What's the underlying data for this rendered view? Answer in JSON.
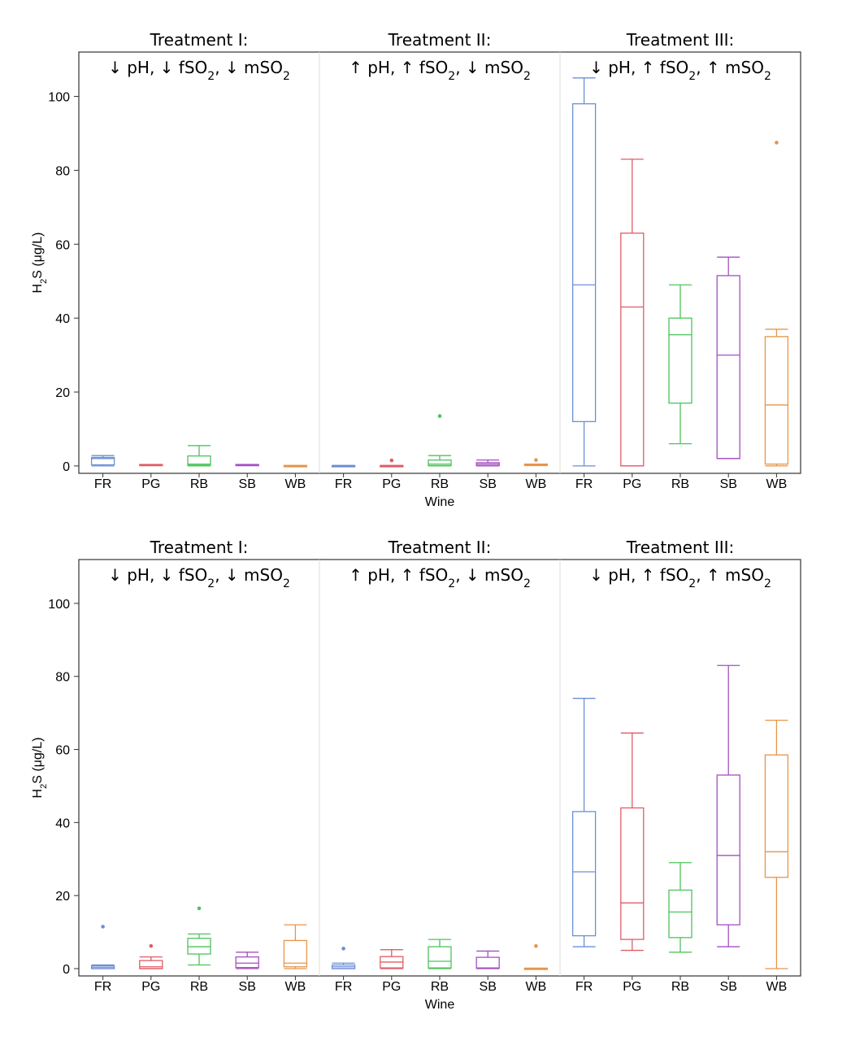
{
  "chart_data": [
    {
      "type": "box",
      "xlabel": "Wine",
      "ylabel": "H₂S (μg/L)",
      "ylim": [
        -2,
        112
      ],
      "yticks": [
        0,
        20,
        40,
        60,
        80,
        100
      ],
      "categories": [
        "FR",
        "PG",
        "RB",
        "SB",
        "WB"
      ],
      "colors": {
        "FR": "#6b8fd4",
        "PG": "#e05c67",
        "RB": "#4cc45a",
        "SB": "#a44fc2",
        "WB": "#e8944a"
      },
      "panels": [
        {
          "title": "Treatment I:",
          "subtitle": "↓ pH, ↓ fSO₂, ↓ mSO₂",
          "boxes": [
            {
              "cat": "FR",
              "lo": 0,
              "q1": 0.3,
              "med": 2.0,
              "q3": 2.3,
              "hi": 2.8,
              "outliers": []
            },
            {
              "cat": "PG",
              "lo": 0.2,
              "q1": 0.2,
              "med": 0.3,
              "q3": 0.4,
              "hi": 0.4,
              "outliers": []
            },
            {
              "cat": "RB",
              "lo": 0,
              "q1": 0.2,
              "med": 0.5,
              "q3": 2.7,
              "hi": 5.5,
              "outliers": []
            },
            {
              "cat": "SB",
              "lo": 0.2,
              "q1": 0.2,
              "med": 0.3,
              "q3": 0.4,
              "hi": 0.4,
              "outliers": []
            },
            {
              "cat": "WB",
              "lo": 0,
              "q1": 0,
              "med": 0.1,
              "q3": 0.1,
              "hi": 0.1,
              "outliers": []
            }
          ]
        },
        {
          "title": "Treatment II:",
          "subtitle": "↑ pH, ↑ fSO₂, ↓ mSO₂",
          "boxes": [
            {
              "cat": "FR",
              "lo": 0,
              "q1": 0,
              "med": 0.1,
              "q3": 0.1,
              "hi": 0.1,
              "outliers": []
            },
            {
              "cat": "PG",
              "lo": 0,
              "q1": 0,
              "med": 0.1,
              "q3": 0.1,
              "hi": 0.1,
              "outliers": [
                1.5
              ]
            },
            {
              "cat": "RB",
              "lo": 0,
              "q1": 0.1,
              "med": 0.5,
              "q3": 1.6,
              "hi": 2.8,
              "outliers": [
                13.5
              ]
            },
            {
              "cat": "SB",
              "lo": 0,
              "q1": 0.1,
              "med": 0.5,
              "q3": 0.9,
              "hi": 1.6,
              "outliers": []
            },
            {
              "cat": "WB",
              "lo": 0.1,
              "q1": 0.2,
              "med": 0.3,
              "q3": 0.5,
              "hi": 0.5,
              "outliers": [
                1.6
              ]
            }
          ]
        },
        {
          "title": "Treatment III:",
          "subtitle": "↓ pH, ↑ fSO₂, ↑ mSO₂",
          "boxes": [
            {
              "cat": "FR",
              "lo": 0,
              "q1": 12,
              "med": 49,
              "q3": 98,
              "hi": 105,
              "outliers": []
            },
            {
              "cat": "PG",
              "lo": 0,
              "q1": 0,
              "med": 43,
              "q3": 63,
              "hi": 83,
              "outliers": []
            },
            {
              "cat": "RB",
              "lo": 6,
              "q1": 17,
              "med": 35.5,
              "q3": 40,
              "hi": 49,
              "outliers": []
            },
            {
              "cat": "SB",
              "lo": 2,
              "q1": 2,
              "med": 30,
              "q3": 51.5,
              "hi": 56.5,
              "outliers": []
            },
            {
              "cat": "WB",
              "lo": 0,
              "q1": 0.5,
              "med": 16.5,
              "q3": 35,
              "hi": 37,
              "outliers": [
                87.5
              ]
            }
          ]
        }
      ]
    },
    {
      "type": "box",
      "xlabel": "Wine",
      "ylabel": "H₂S (μg/L)",
      "ylim": [
        -2,
        112
      ],
      "yticks": [
        0,
        20,
        40,
        60,
        80,
        100
      ],
      "categories": [
        "FR",
        "PG",
        "RB",
        "SB",
        "WB"
      ],
      "colors": {
        "FR": "#6b8fd4",
        "PG": "#e05c67",
        "RB": "#4cc45a",
        "SB": "#a44fc2",
        "WB": "#e8944a"
      },
      "panels": [
        {
          "title": "Treatment I:",
          "subtitle": "↓ pH, ↓ fSO₂, ↓ mSO₂",
          "boxes": [
            {
              "cat": "FR",
              "lo": 0,
              "q1": 0,
              "med": 0.4,
              "q3": 0.8,
              "hi": 1.0,
              "outliers": [
                11.5
              ]
            },
            {
              "cat": "PG",
              "lo": 0,
              "q1": 0,
              "med": 0.5,
              "q3": 2.2,
              "hi": 3.2,
              "outliers": [
                6.2
              ]
            },
            {
              "cat": "RB",
              "lo": 1,
              "q1": 4,
              "med": 6,
              "q3": 8.3,
              "hi": 9.5,
              "outliers": [
                16.5
              ]
            },
            {
              "cat": "SB",
              "lo": 0,
              "q1": 0.3,
              "med": 1.5,
              "q3": 3.2,
              "hi": 4.5,
              "outliers": []
            },
            {
              "cat": "WB",
              "lo": 0,
              "q1": 0.5,
              "med": 1.5,
              "q3": 7.7,
              "hi": 12,
              "outliers": []
            }
          ]
        },
        {
          "title": "Treatment II:",
          "subtitle": "↑ pH, ↑ fSO₂, ↓ mSO₂",
          "boxes": [
            {
              "cat": "FR",
              "lo": 0,
              "q1": 0,
              "med": 0.5,
              "q3": 1.0,
              "hi": 1.5,
              "outliers": [
                5.5
              ]
            },
            {
              "cat": "PG",
              "lo": 0,
              "q1": 0.2,
              "med": 1.8,
              "q3": 3.3,
              "hi": 5.2,
              "outliers": []
            },
            {
              "cat": "RB",
              "lo": 0,
              "q1": 0.2,
              "med": 2,
              "q3": 6,
              "hi": 8,
              "outliers": []
            },
            {
              "cat": "SB",
              "lo": 0,
              "q1": 0.1,
              "med": 0.2,
              "q3": 3.1,
              "hi": 4.8,
              "outliers": []
            },
            {
              "cat": "WB",
              "lo": 0,
              "q1": 0,
              "med": 0.1,
              "q3": 0.1,
              "hi": 0.1,
              "outliers": [
                6.2
              ]
            }
          ]
        },
        {
          "title": "Treatment III:",
          "subtitle": "↓ pH, ↑ fSO₂, ↑ mSO₂",
          "boxes": [
            {
              "cat": "FR",
              "lo": 6,
              "q1": 9,
              "med": 26.5,
              "q3": 43,
              "hi": 74,
              "outliers": []
            },
            {
              "cat": "PG",
              "lo": 5,
              "q1": 8,
              "med": 18,
              "q3": 44,
              "hi": 64.5,
              "outliers": []
            },
            {
              "cat": "RB",
              "lo": 4.5,
              "q1": 8.5,
              "med": 15.5,
              "q3": 21.5,
              "hi": 29,
              "outliers": []
            },
            {
              "cat": "SB",
              "lo": 6,
              "q1": 12,
              "med": 31,
              "q3": 53,
              "hi": 83,
              "outliers": []
            },
            {
              "cat": "WB",
              "lo": 0,
              "q1": 25,
              "med": 32,
              "q3": 58.5,
              "hi": 68,
              "outliers": []
            }
          ]
        }
      ]
    }
  ]
}
